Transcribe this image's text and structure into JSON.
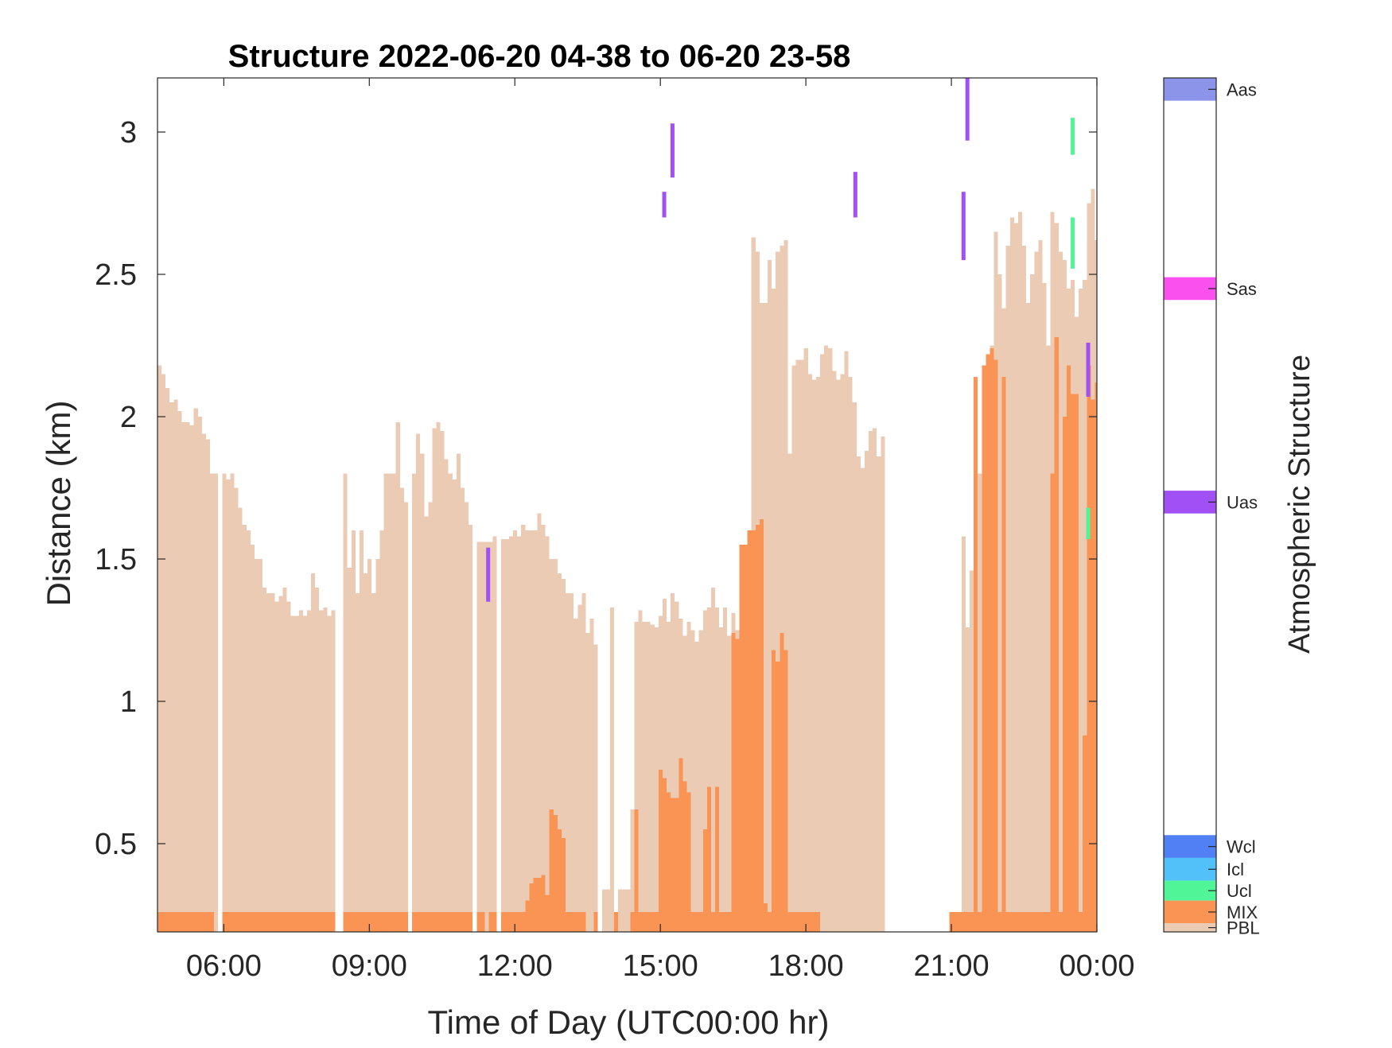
{
  "chart_data": {
    "type": "bar",
    "title": "Structure 2022-06-20 04-38 to 06-20 23-58",
    "xlabel": "Time of Day (UTC00:00 hr)",
    "ylabel": "Distance (km)",
    "xlim_hours": [
      4.633,
      24.0
    ],
    "ylim": [
      0.19,
      3.19
    ],
    "x_ticks": [
      {
        "value": 6,
        "label": "06:00"
      },
      {
        "value": 9,
        "label": "09:00"
      },
      {
        "value": 12,
        "label": "12:00"
      },
      {
        "value": 15,
        "label": "15:00"
      },
      {
        "value": 18,
        "label": "18:00"
      },
      {
        "value": 21,
        "label": "21:00"
      },
      {
        "value": 24,
        "label": "00:00"
      }
    ],
    "y_ticks": [
      {
        "value": 0.5,
        "label": "0.5"
      },
      {
        "value": 1.0,
        "label": "1"
      },
      {
        "value": 1.5,
        "label": "1.5"
      },
      {
        "value": 2.0,
        "label": "2"
      },
      {
        "value": 2.5,
        "label": "2.5"
      },
      {
        "value": 3.0,
        "label": "3"
      }
    ],
    "bin_hours": 0.0833,
    "colors": {
      "PBL": "#eccbb5",
      "MIX": "#f99455",
      "Ucl": "#50f597",
      "Icl": "#53c1f9",
      "Wcl": "#5080f3",
      "Uas": "#a150f5",
      "Sas": "#fa50ee",
      "Aas": "#8b94e9"
    },
    "colorbar": {
      "title": "Atmospheric Structure",
      "categories": [
        {
          "label": "Aas",
          "color": "#8b94e9"
        },
        {
          "label": "Sas",
          "color": "#fa50ee"
        },
        {
          "label": "Uas",
          "color": "#a150f5"
        },
        {
          "label": "Wcl",
          "color": "#5080f3"
        },
        {
          "label": "Icl",
          "color": "#53c1f9"
        },
        {
          "label": "Ucl",
          "color": "#50f597"
        },
        {
          "label": "MIX",
          "color": "#f99455"
        },
        {
          "label": "PBL",
          "color": "#eccbb5"
        }
      ]
    },
    "series": [
      {
        "name": "PBL",
        "start_hour": 4.633,
        "values": [
          2.18,
          2.15,
          2.1,
          2.05,
          2.06,
          2.02,
          1.98,
          1.98,
          1.97,
          2.03,
          2.0,
          1.94,
          1.92,
          1.8,
          1.8,
          null,
          1.8,
          1.78,
          1.8,
          1.75,
          1.68,
          1.62,
          1.6,
          1.55,
          1.5,
          1.5,
          1.4,
          1.38,
          1.38,
          1.35,
          1.37,
          1.4,
          1.35,
          1.3,
          1.3,
          1.32,
          1.3,
          1.32,
          1.45,
          1.4,
          1.32,
          1.33,
          1.3,
          1.32,
          null,
          null,
          1.8,
          1.47,
          1.6,
          1.38,
          1.6,
          1.45,
          1.5,
          1.38,
          1.5,
          1.6,
          1.8,
          1.8,
          1.8,
          1.98,
          1.75,
          1.7,
          null,
          1.8,
          1.94,
          1.87,
          1.65,
          1.7,
          1.96,
          1.98,
          1.95,
          1.85,
          1.8,
          1.78,
          1.87,
          1.75,
          1.7,
          1.62,
          null,
          1.56,
          1.56,
          1.56,
          1.56,
          1.58,
          null,
          1.57,
          1.57,
          1.58,
          1.6,
          1.58,
          1.62,
          1.6,
          1.6,
          1.6,
          1.66,
          1.62,
          1.58,
          1.5,
          1.5,
          1.45,
          1.43,
          1.38,
          1.38,
          1.29,
          1.34,
          1.38,
          1.24,
          1.29,
          1.2,
          null,
          0.34,
          0.34,
          1.33,
          null,
          0.34,
          0.34,
          0.34,
          0.62,
          1.28,
          1.32,
          1.28,
          1.28,
          1.27,
          1.26,
          1.3,
          1.36,
          1.28,
          1.38,
          1.35,
          1.29,
          1.23,
          1.28,
          1.25,
          1.21,
          1.25,
          1.32,
          1.33,
          1.4,
          1.33,
          1.26,
          1.33,
          1.23,
          1.31,
          1.25,
          1.33,
          1.4,
          1.45,
          2.63,
          2.58,
          2.4,
          2.4,
          2.55,
          2.45,
          2.58,
          2.6,
          2.62,
          1.87,
          2.18,
          2.2,
          2.2,
          2.24,
          2.15,
          2.13,
          2.14,
          2.22,
          2.25,
          2.24,
          2.16,
          2.13,
          2.15,
          2.23,
          2.14,
          2.05,
          1.86,
          1.82,
          1.88,
          1.95,
          1.96,
          1.86,
          1.93,
          null,
          null,
          null,
          null,
          null,
          null,
          null,
          null,
          null,
          null,
          null,
          null,
          null,
          null,
          null,
          null,
          null,
          null,
          null,
          1.58,
          1.26,
          1.46,
          1.65,
          1.8,
          1.85,
          1.82,
          2.25,
          2.65,
          2.5,
          2.38,
          2.6,
          2.7,
          2.68,
          2.72,
          2.6,
          2.4,
          2.5,
          2.58,
          2.62,
          2.47,
          2.25,
          2.72,
          2.68,
          2.58,
          2.55,
          2.45,
          2.48,
          2.35,
          2.45,
          2.48,
          2.75,
          2.8,
          2.62,
          2.48,
          2.4,
          2.6,
          2.38,
          2.5,
          2.68,
          2.35,
          2.97,
          2.7,
          2.62,
          2.85,
          2.85,
          2.6,
          2.83,
          2.75,
          2.7,
          2.68,
          2.73,
          2.65,
          2.75,
          2.8,
          2.7,
          2.75,
          2.72,
          2.68,
          2.76,
          2.75,
          2.67,
          2.6,
          2.58,
          2.6,
          2.56,
          2.58,
          2.55,
          2.58,
          2.5,
          2.5,
          2.48,
          2.42,
          2.48,
          2.5,
          2.4,
          2.5,
          2.52,
          2.55,
          2.57,
          2.55
        ]
      },
      {
        "name": "MIX",
        "start_hour": 4.633,
        "values": [
          0.26,
          0.26,
          0.26,
          0.26,
          0.26,
          0.26,
          0.26,
          0.26,
          0.26,
          0.26,
          0.26,
          0.26,
          0.26,
          0.26,
          null,
          null,
          0.26,
          0.26,
          0.26,
          0.26,
          0.26,
          0.26,
          0.26,
          0.26,
          0.26,
          0.26,
          0.26,
          0.26,
          0.26,
          0.26,
          0.26,
          0.26,
          0.26,
          0.26,
          0.26,
          0.26,
          0.26,
          0.26,
          0.26,
          0.26,
          0.26,
          0.26,
          0.26,
          0.26,
          null,
          null,
          0.26,
          0.26,
          0.26,
          0.26,
          0.26,
          0.26,
          0.26,
          0.26,
          0.26,
          0.26,
          0.26,
          0.26,
          0.26,
          0.26,
          0.26,
          0.26,
          null,
          0.26,
          0.26,
          0.26,
          0.26,
          0.26,
          0.26,
          0.26,
          0.26,
          0.26,
          0.26,
          0.26,
          0.26,
          0.26,
          0.26,
          0.26,
          null,
          0.26,
          0.26,
          null,
          0.26,
          0.26,
          null,
          0.26,
          0.26,
          0.26,
          0.26,
          0.26,
          0.26,
          0.3,
          0.36,
          0.38,
          0.38,
          0.39,
          0.32,
          0.62,
          0.6,
          0.55,
          0.52,
          0.26,
          0.26,
          0.26,
          0.26,
          0.26,
          null,
          null,
          0.26,
          null,
          null,
          null,
          null,
          0.26,
          null,
          null,
          null,
          0.26,
          0.62,
          0.26,
          0.26,
          0.26,
          0.26,
          0.26,
          0.76,
          0.73,
          0.68,
          0.66,
          0.66,
          0.8,
          0.72,
          0.68,
          0.26,
          0.26,
          0.26,
          0.55,
          0.7,
          0.26,
          0.7,
          0.26,
          0.26,
          0.26,
          1.24,
          1.22,
          1.55,
          1.55,
          1.6,
          1.6,
          1.62,
          1.64,
          0.29,
          0.26,
          1.18,
          1.14,
          1.24,
          1.18,
          0.26,
          0.26,
          0.26,
          0.26,
          0.26,
          0.26,
          0.26,
          0.26,
          null,
          null,
          null,
          null,
          null,
          null,
          null,
          null,
          null,
          null,
          null,
          null,
          null,
          null,
          null,
          null,
          null,
          null,
          null,
          null,
          null,
          null,
          null,
          null,
          null,
          null,
          null,
          null,
          null,
          null,
          null,
          null,
          0.26,
          0.26,
          0.26,
          0.26,
          0.26,
          0.26,
          2.14,
          0.26,
          2.18,
          2.22,
          2.24,
          2.2,
          0.26,
          2.14,
          0.26,
          0.26,
          0.26,
          0.26,
          0.26,
          0.26,
          0.26,
          0.26,
          0.26,
          0.26,
          0.26,
          1.8,
          2.28,
          0.26,
          2.0,
          2.18,
          2.08,
          2.08,
          0.26,
          0.88,
          2.18,
          2.06,
          2.12,
          2.02,
          0.26,
          1.92,
          2.07,
          2.28,
          2.08,
          2.0,
          2.08,
          2.12,
          2.1,
          2.28,
          2.15,
          2.12,
          2.07,
          1.98,
          2.04,
          2.08,
          2.0,
          2.15,
          2.2,
          2.23,
          2.26,
          2.28,
          2.22,
          2.26,
          2.18,
          2.1,
          2.1,
          2.06,
          0.26,
          1.79,
          1.93,
          1.9,
          2.04,
          2.05,
          0.83,
          0.83,
          1.56,
          1.55
        ]
      }
    ],
    "overlays": [
      {
        "name": "Uas",
        "hour": 11.45,
        "y0": 1.35,
        "y1": 1.54
      },
      {
        "name": "Uas",
        "hour": 15.08,
        "y0": 2.7,
        "y1": 2.79
      },
      {
        "name": "Uas",
        "hour": 15.25,
        "y0": 2.84,
        "y1": 3.03
      },
      {
        "name": "Uas",
        "hour": 19.02,
        "y0": 2.7,
        "y1": 2.86
      },
      {
        "name": "Uas",
        "hour": 21.25,
        "y0": 2.55,
        "y1": 2.79
      },
      {
        "name": "Uas",
        "hour": 21.33,
        "y0": 2.97,
        "y1": 3.19
      },
      {
        "name": "Ucl",
        "hour": 23.5,
        "y0": 2.52,
        "y1": 2.7
      },
      {
        "name": "Ucl",
        "hour": 23.5,
        "y0": 2.92,
        "y1": 3.05
      },
      {
        "name": "Uas",
        "hour": 23.82,
        "y0": 2.07,
        "y1": 2.26
      },
      {
        "name": "Ucl",
        "hour": 23.82,
        "y0": 1.57,
        "y1": 1.68
      }
    ]
  }
}
